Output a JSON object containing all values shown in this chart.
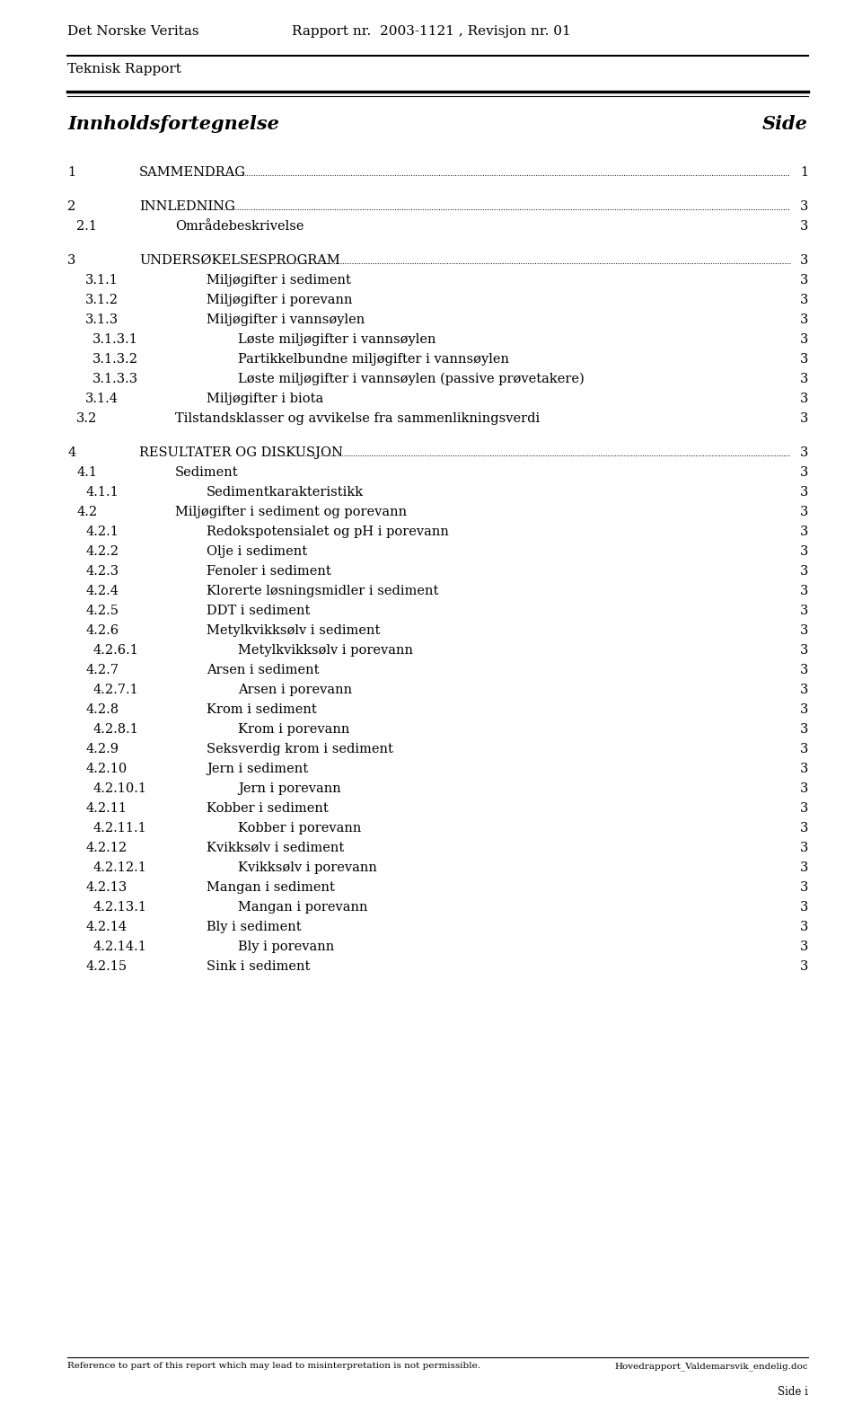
{
  "header_left": "Det Norske Veritas",
  "header_center": "Rapport nr.  2003-1121 , Revisjon nr. 01",
  "subheader_left": "Teknisk Rapport",
  "toc_title": "Innholdsfortegnelse",
  "toc_side": "Side",
  "footer_left": "Reference to part of this report which may lead to misinterpretation is not permissible.",
  "footer_right": "Hovedrapport_Valdemarsvik_endelig.doc",
  "footer_page": "Side i",
  "entries": [
    {
      "num": "1",
      "text": "SAMMENDRAG",
      "dots": true,
      "page": "1",
      "level": 0
    },
    {
      "num": "",
      "text": "",
      "dots": false,
      "page": "",
      "level": -1
    },
    {
      "num": "2",
      "text": "INNLEDNING",
      "dots": true,
      "page": "3",
      "level": 0
    },
    {
      "num": "2.1",
      "text": "Områdebeskrivelse",
      "dots": false,
      "page": "3",
      "level": 1
    },
    {
      "num": "",
      "text": "",
      "dots": false,
      "page": "",
      "level": -1
    },
    {
      "num": "3",
      "text": "UNDERSØKELSESPROGRAM",
      "dots": true,
      "page": "3",
      "level": 0
    },
    {
      "num": "3.1.1",
      "text": "Miljøgifter i sediment",
      "dots": false,
      "page": "3",
      "level": 2
    },
    {
      "num": "3.1.2",
      "text": "Miljøgifter i porevann",
      "dots": false,
      "page": "3",
      "level": 2
    },
    {
      "num": "3.1.3",
      "text": "Miljøgifter i vannsøylen",
      "dots": false,
      "page": "3",
      "level": 2
    },
    {
      "num": "3.1.3.1",
      "text": "Løste miljøgifter i vannsøylen",
      "dots": false,
      "page": "3",
      "level": 3
    },
    {
      "num": "3.1.3.2",
      "text": "Partikkelbundne miljøgifter i vannsøylen",
      "dots": false,
      "page": "3",
      "level": 3
    },
    {
      "num": "3.1.3.3",
      "text": "Løste miljøgifter i vannsøylen (passive prøvetakere)",
      "dots": false,
      "page": "3",
      "level": 3
    },
    {
      "num": "3.1.4",
      "text": "Miljøgifter i biota",
      "dots": false,
      "page": "3",
      "level": 2
    },
    {
      "num": "3.2",
      "text": "Tilstandsklasser og avvikelse fra sammenlikningsverdi",
      "dots": false,
      "page": "3",
      "level": 1
    },
    {
      "num": "",
      "text": "",
      "dots": false,
      "page": "",
      "level": -1
    },
    {
      "num": "4",
      "text": "RESULTATER OG DISKUSJON",
      "dots": true,
      "page": "3",
      "level": 0
    },
    {
      "num": "4.1",
      "text": "Sediment",
      "dots": false,
      "page": "3",
      "level": 1
    },
    {
      "num": "4.1.1",
      "text": "Sedimentkarakteristikk",
      "dots": false,
      "page": "3",
      "level": 2
    },
    {
      "num": "4.2",
      "text": "Miljøgifter i sediment og porevann",
      "dots": false,
      "page": "3",
      "level": 1
    },
    {
      "num": "4.2.1",
      "text": "Redokspotensialet og pH i porevann",
      "dots": false,
      "page": "3",
      "level": 2
    },
    {
      "num": "4.2.2",
      "text": "Olje i sediment",
      "dots": false,
      "page": "3",
      "level": 2
    },
    {
      "num": "4.2.3",
      "text": "Fenoler i sediment",
      "dots": false,
      "page": "3",
      "level": 2
    },
    {
      "num": "4.2.4",
      "text": "Klorerte løsningsmidler i sediment",
      "dots": false,
      "page": "3",
      "level": 2
    },
    {
      "num": "4.2.5",
      "text": "DDT i sediment",
      "dots": false,
      "page": "3",
      "level": 2
    },
    {
      "num": "4.2.6",
      "text": "Metylkvikksølv i sediment",
      "dots": false,
      "page": "3",
      "level": 2
    },
    {
      "num": "4.2.6.1",
      "text": "Metylkvikksølv i porevann",
      "dots": false,
      "page": "3",
      "level": 3
    },
    {
      "num": "4.2.7",
      "text": "Arsen i sediment",
      "dots": false,
      "page": "3",
      "level": 2
    },
    {
      "num": "4.2.7.1",
      "text": "Arsen i porevann",
      "dots": false,
      "page": "3",
      "level": 3
    },
    {
      "num": "4.2.8",
      "text": "Krom i sediment",
      "dots": false,
      "page": "3",
      "level": 2
    },
    {
      "num": "4.2.8.1",
      "text": "Krom i porevann",
      "dots": false,
      "page": "3",
      "level": 3
    },
    {
      "num": "4.2.9",
      "text": "Seksverdig krom i sediment",
      "dots": false,
      "page": "3",
      "level": 2
    },
    {
      "num": "4.2.10",
      "text": "Jern i sediment",
      "dots": false,
      "page": "3",
      "level": 2
    },
    {
      "num": "4.2.10.1",
      "text": "Jern i porevann",
      "dots": false,
      "page": "3",
      "level": 3
    },
    {
      "num": "4.2.11",
      "text": "Kobber i sediment",
      "dots": false,
      "page": "3",
      "level": 2
    },
    {
      "num": "4.2.11.1",
      "text": "Kobber i porevann",
      "dots": false,
      "page": "3",
      "level": 3
    },
    {
      "num": "4.2.12",
      "text": "Kvikksølv i sediment",
      "dots": false,
      "page": "3",
      "level": 2
    },
    {
      "num": "4.2.12.1",
      "text": "Kvikksølv i porevann",
      "dots": false,
      "page": "3",
      "level": 3
    },
    {
      "num": "4.2.13",
      "text": "Mangan i sediment",
      "dots": false,
      "page": "3",
      "level": 2
    },
    {
      "num": "4.2.13.1",
      "text": "Mangan i porevann",
      "dots": false,
      "page": "3",
      "level": 3
    },
    {
      "num": "4.2.14",
      "text": "Bly i sediment",
      "dots": false,
      "page": "3",
      "level": 2
    },
    {
      "num": "4.2.14.1",
      "text": "Bly i porevann",
      "dots": false,
      "page": "3",
      "level": 3
    },
    {
      "num": "4.2.15",
      "text": "Sink i sediment",
      "dots": false,
      "page": "3",
      "level": 2
    }
  ],
  "bg_color": "#ffffff",
  "text_color": "#000000"
}
